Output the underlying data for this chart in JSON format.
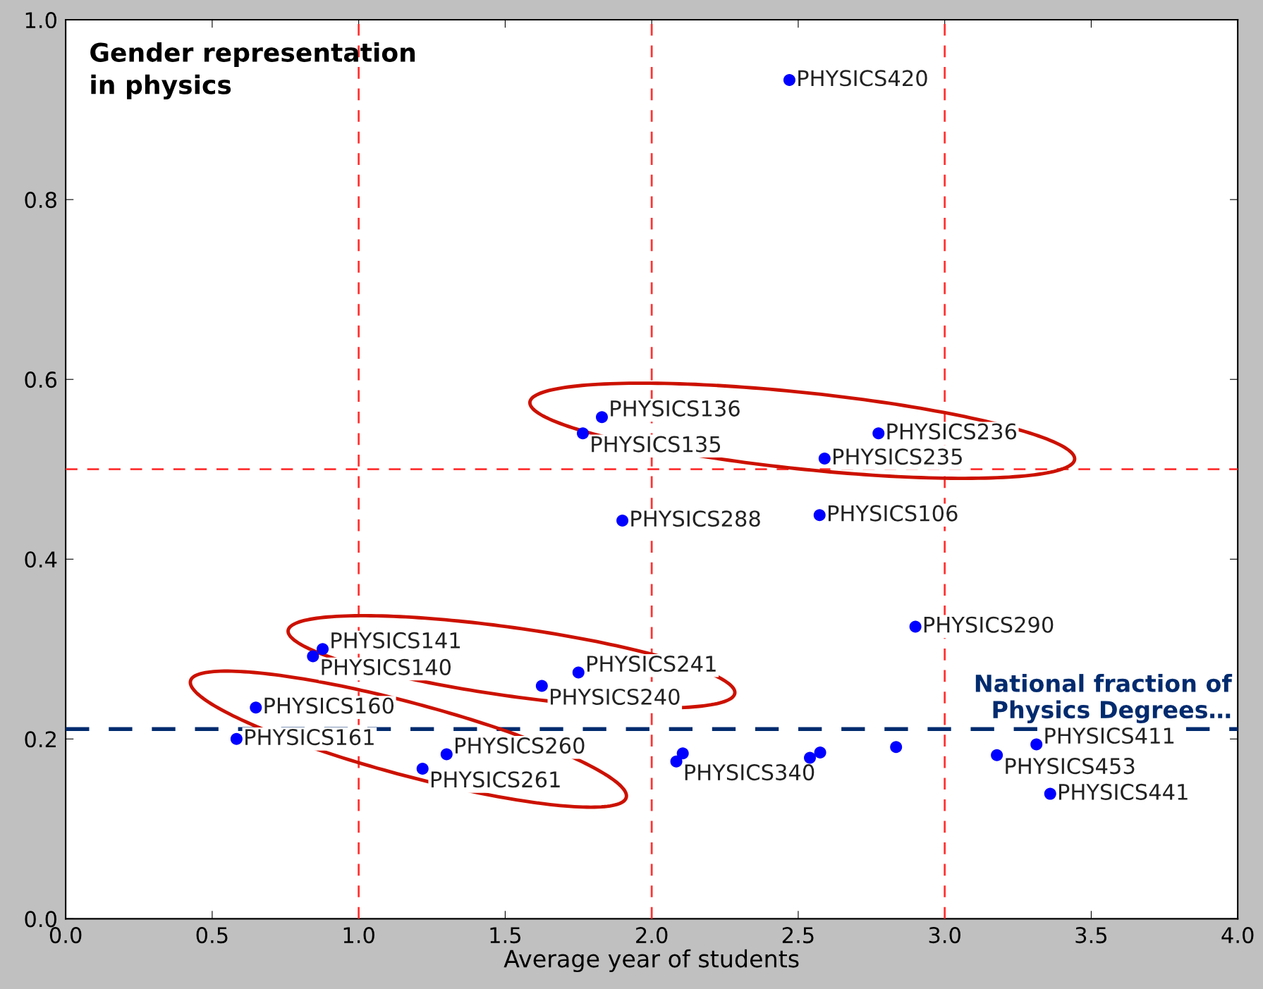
{
  "chart_data": {
    "type": "scatter",
    "xlabel": "Average year of students",
    "color": "#0000ff",
    "marker": "circle",
    "grid": false,
    "x": [
      2.47,
      1.83,
      1.765,
      2.774,
      2.59,
      1.9,
      2.573,
      2.9,
      0.877,
      0.844,
      1.75,
      1.625,
      0.649,
      0.583,
      1.3,
      1.218,
      2.084,
      2.106,
      2.54,
      2.575,
      2.834,
      3.178,
      3.313,
      3.36
    ],
    "values": [
      0.933,
      0.558,
      0.54,
      0.54,
      0.512,
      0.443,
      0.449,
      0.325,
      0.3,
      0.292,
      0.274,
      0.259,
      0.235,
      0.2,
      0.183,
      0.167,
      0.175,
      0.184,
      0.179,
      0.185,
      0.191,
      0.182,
      0.194,
      0.139
    ],
    "xlim": [
      0,
      4
    ],
    "ylim": [
      0,
      1
    ],
    "xticks": [
      {
        "value": 0,
        "label": "0.0"
      },
      0.5,
      {
        "value": 1,
        "label": "1.0"
      },
      1.5,
      {
        "value": 2,
        "label": "2.0"
      },
      2.5,
      {
        "value": 3,
        "label": "3.0"
      },
      3.5,
      {
        "value": 4,
        "label": "4.0"
      }
    ],
    "yticks": [
      {
        "value": 0,
        "label": "0.0"
      },
      0.2,
      0.4,
      0.6,
      0.8,
      {
        "value": 1,
        "label": "1.0"
      }
    ],
    "ref_lines": [
      {
        "axis": "x",
        "value": 1,
        "color": "#ff3333",
        "line_style": "dashed"
      },
      {
        "axis": "x",
        "value": 2,
        "color": "#ff3333",
        "line_style": "dashed"
      },
      {
        "axis": "x",
        "value": 3,
        "color": "#ff3333",
        "line_style": "dashed"
      },
      {
        "axis": "y",
        "value": 0.5,
        "color": "#ff3333",
        "line_style": "dashed"
      },
      {
        "axis": "y",
        "value": 0.211,
        "color": "#002b6e",
        "line_style": "dashed",
        "label": "National fraction of\nPhysics Degrees…"
      }
    ],
    "annotations": [
      "Gender representation\nin physics",
      {
        "text": "PHYSICS420",
        "x": 2.47,
        "y": 0.933
      },
      {
        "text": "PHYSICS136",
        "x": 1.83,
        "y": 0.558
      },
      {
        "text": "PHYSICS135",
        "x": 1.765,
        "y": 0.54
      },
      {
        "text": "PHYSICS236",
        "x": 2.774,
        "y": 0.54
      },
      {
        "text": "PHYSICS235",
        "x": 2.59,
        "y": 0.512
      },
      {
        "text": "PHYSICS288",
        "x": 1.9,
        "y": 0.443
      },
      {
        "text": "PHYSICS106",
        "x": 2.573,
        "y": 0.449
      },
      {
        "text": "PHYSICS290",
        "x": 2.9,
        "y": 0.325
      },
      {
        "text": "PHYSICS141",
        "x": 0.877,
        "y": 0.3
      },
      {
        "text": "PHYSICS140",
        "x": 0.844,
        "y": 0.292
      },
      {
        "text": "PHYSICS241",
        "x": 1.75,
        "y": 0.274
      },
      {
        "text": "PHYSICS240",
        "x": 1.625,
        "y": 0.259
      },
      {
        "text": "PHYSICS160",
        "x": 0.649,
        "y": 0.235
      },
      {
        "text": "PHYSICS161",
        "x": 0.583,
        "y": 0.2
      },
      {
        "text": "PHYSICS260",
        "x": 1.3,
        "y": 0.183
      },
      {
        "text": "PHYSICS261",
        "x": 1.218,
        "y": 0.167
      },
      {
        "text": "PHYSICS340",
        "x": 2.084,
        "y": 0.175
      },
      {
        "text": "PHYSICS453",
        "x": 3.178,
        "y": 0.182
      },
      {
        "text": "PHYSICS411",
        "x": 3.313,
        "y": 0.194
      },
      {
        "text": "PHYSICS441",
        "x": 3.36,
        "y": 0.139
      }
    ]
  }
}
